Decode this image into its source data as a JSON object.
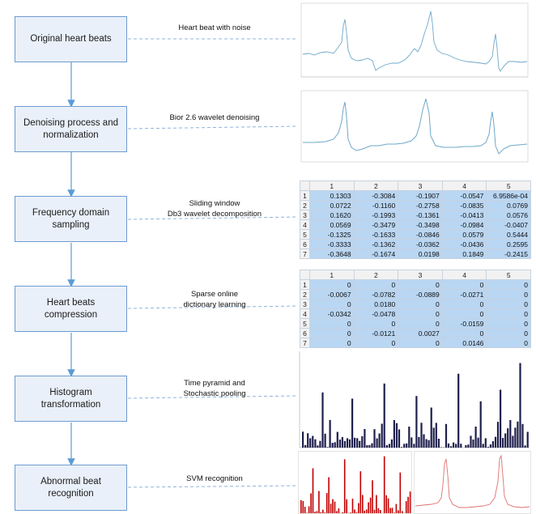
{
  "steps": [
    {
      "label": "Original heart beats"
    },
    {
      "label": "Denoising process and normalization"
    },
    {
      "label": "Frequency domain sampling"
    },
    {
      "label": "Heart beats compression"
    },
    {
      "label": "Histogram transformation"
    },
    {
      "label": "Abnormal beat recognition"
    }
  ],
  "captions": {
    "c1": "Heart beat with noise",
    "c2": "Bior 2.6 wavelet denoising",
    "c3a": "Sliding window",
    "c3b": "Db3 wavelet decomposition",
    "c4a": "Sparse online",
    "c4b": "dictionary learning",
    "c5a": "Time pyramid and",
    "c5b": "Stochastic  pooling",
    "c6": "SVM recognition"
  },
  "colors": {
    "box_fill": "#e9f0f9",
    "box_border": "#6f9bd0",
    "arrow": "#5b9bd5",
    "signal": "#6ea8c9",
    "hist_bar": "#1f1f4d",
    "svm_bar": "#c00000",
    "svm_line": "#e07070",
    "cell_fill": "#b9d6f3"
  },
  "table1": {
    "headers": [
      "1",
      "2",
      "3",
      "4",
      "5"
    ],
    "rows": [
      {
        "idx": "1",
        "cells": [
          "0.1303",
          "-0.3084",
          "-0.1907",
          "-0.0547",
          "6.9586e-04"
        ]
      },
      {
        "idx": "2",
        "cells": [
          "0.0722",
          "-0.1160",
          "-0.2758",
          "-0.0835",
          "0.0769"
        ]
      },
      {
        "idx": "3",
        "cells": [
          "0.1620",
          "-0.1993",
          "-0.1361",
          "-0.0413",
          "0.0576"
        ]
      },
      {
        "idx": "4",
        "cells": [
          "0.0569",
          "-0.3479",
          "-0.3498",
          "-0.0984",
          "-0.0407"
        ]
      },
      {
        "idx": "5",
        "cells": [
          "-0.1325",
          "-0.1633",
          "-0.0846",
          "0.0579",
          "0.5444"
        ]
      },
      {
        "idx": "6",
        "cells": [
          "-0.3333",
          "-0.1362",
          "-0.0362",
          "-0.0436",
          "0.2595"
        ]
      },
      {
        "idx": "7",
        "cells": [
          "-0.3648",
          "-0.1674",
          "0.0198",
          "0.1849",
          "-0.2415"
        ]
      }
    ]
  },
  "table2": {
    "headers": [
      "1",
      "2",
      "3",
      "4",
      "5"
    ],
    "rows": [
      {
        "idx": "1",
        "cells": [
          "0",
          "0",
          "0",
          "0",
          "0"
        ]
      },
      {
        "idx": "2",
        "cells": [
          "-0.0067",
          "-0.0782",
          "-0.0889",
          "-0.0271",
          "0"
        ]
      },
      {
        "idx": "3",
        "cells": [
          "0",
          "0.0180",
          "0",
          "0",
          "0"
        ]
      },
      {
        "idx": "4",
        "cells": [
          "-0.0342",
          "-0.0478",
          "0",
          "0",
          "0"
        ]
      },
      {
        "idx": "5",
        "cells": [
          "0",
          "0",
          "0",
          "-0.0159",
          "0"
        ]
      },
      {
        "idx": "6",
        "cells": [
          "0",
          "-0.0121",
          "0.0027",
          "0",
          "0"
        ]
      },
      {
        "idx": "7",
        "cells": [
          "0",
          "0",
          "0",
          "0.0146",
          "0"
        ]
      }
    ]
  }
}
